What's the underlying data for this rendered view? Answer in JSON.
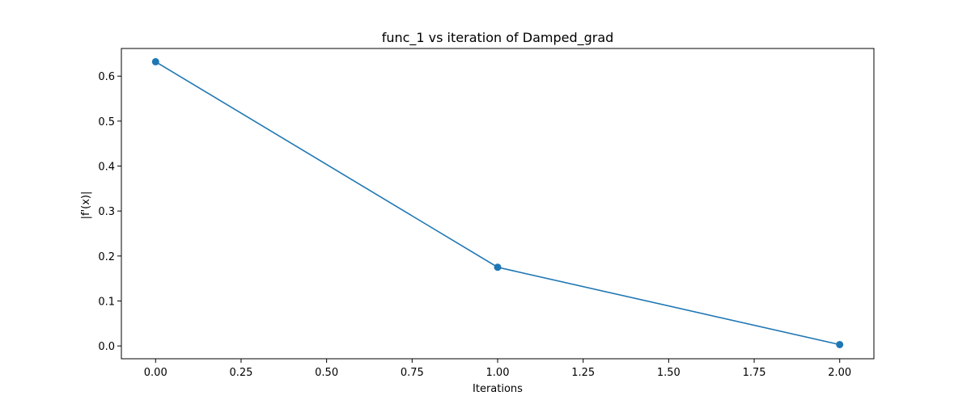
{
  "chart_data": {
    "type": "line",
    "title": "func_1 vs iteration of Damped_grad",
    "xlabel": "Iterations",
    "ylabel": "|f'(x)|",
    "xlim": [
      -0.1,
      2.1
    ],
    "ylim": [
      -0.0285,
      0.6615
    ],
    "xticks": [
      0.0,
      0.25,
      0.5,
      0.75,
      1.0,
      1.25,
      1.5,
      1.75,
      2.0
    ],
    "xtick_labels": [
      "0.00",
      "0.25",
      "0.50",
      "0.75",
      "1.00",
      "1.25",
      "1.50",
      "1.75",
      "2.00"
    ],
    "yticks": [
      0.0,
      0.1,
      0.2,
      0.3,
      0.4,
      0.5,
      0.6
    ],
    "ytick_labels": [
      "0.0",
      "0.1",
      "0.2",
      "0.3",
      "0.4",
      "0.5",
      "0.6"
    ],
    "grid": false,
    "series": [
      {
        "color": "#1f77b4",
        "marker": "circle",
        "x": [
          0,
          1,
          2
        ],
        "y": [
          0.632,
          0.175,
          0.003
        ]
      }
    ]
  }
}
